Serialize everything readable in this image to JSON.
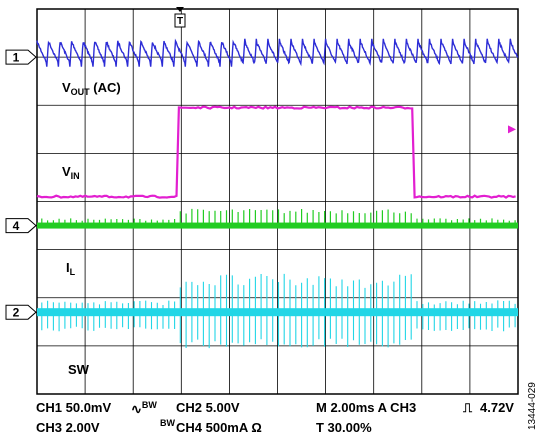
{
  "chart_data": {
    "type": "line",
    "title": "",
    "grid": true,
    "divisions": {
      "x": 10,
      "y": 8
    },
    "trigger_marker": "T",
    "channels": [
      {
        "number": "1",
        "name": "V_OUT (AC)",
        "label_main": "V",
        "label_sub": "OUT",
        "label_suffix": " (AC)",
        "color": "#2c2cd6",
        "trace": "sawtooth_ripple",
        "marker_level_div": 1.0
      },
      {
        "number": "",
        "name": "V_IN",
        "label_main": "V",
        "label_sub": "IN",
        "label_suffix": "",
        "color": "#e21fd0",
        "trace": "step_pulse",
        "low_level_div": 3.9,
        "high_level_div": 2.05,
        "rise_time_div": 2.9,
        "fall_time_div": 7.8,
        "marker_level_div": 2.5
      },
      {
        "number": "4",
        "name": "I_L",
        "label_main": "I",
        "label_sub": "L",
        "label_suffix": "",
        "color": "#22cc22",
        "trace": "pulse_spikes",
        "baseline_div": 4.5
      },
      {
        "number": "2",
        "name": "SW",
        "label_main": "SW",
        "label_sub": "",
        "label_suffix": "",
        "color": "#22d6e6",
        "trace": "switching_node",
        "baseline_div": 6.3
      }
    ],
    "settings": {
      "row1": {
        "ch1": "CH1 50.0mV",
        "bw1": "BW",
        "ch2": "CH2  5.00V",
        "time": "M 2.00ms  A  CH3",
        "trig": "4.72V"
      },
      "row2": {
        "ch3": "CH3 2.00V",
        "bw2": "BW",
        "ch4": "CH4  500mA Ω",
        "trig_pos": "T  30.00%"
      }
    },
    "figure_id": "13444-029"
  }
}
